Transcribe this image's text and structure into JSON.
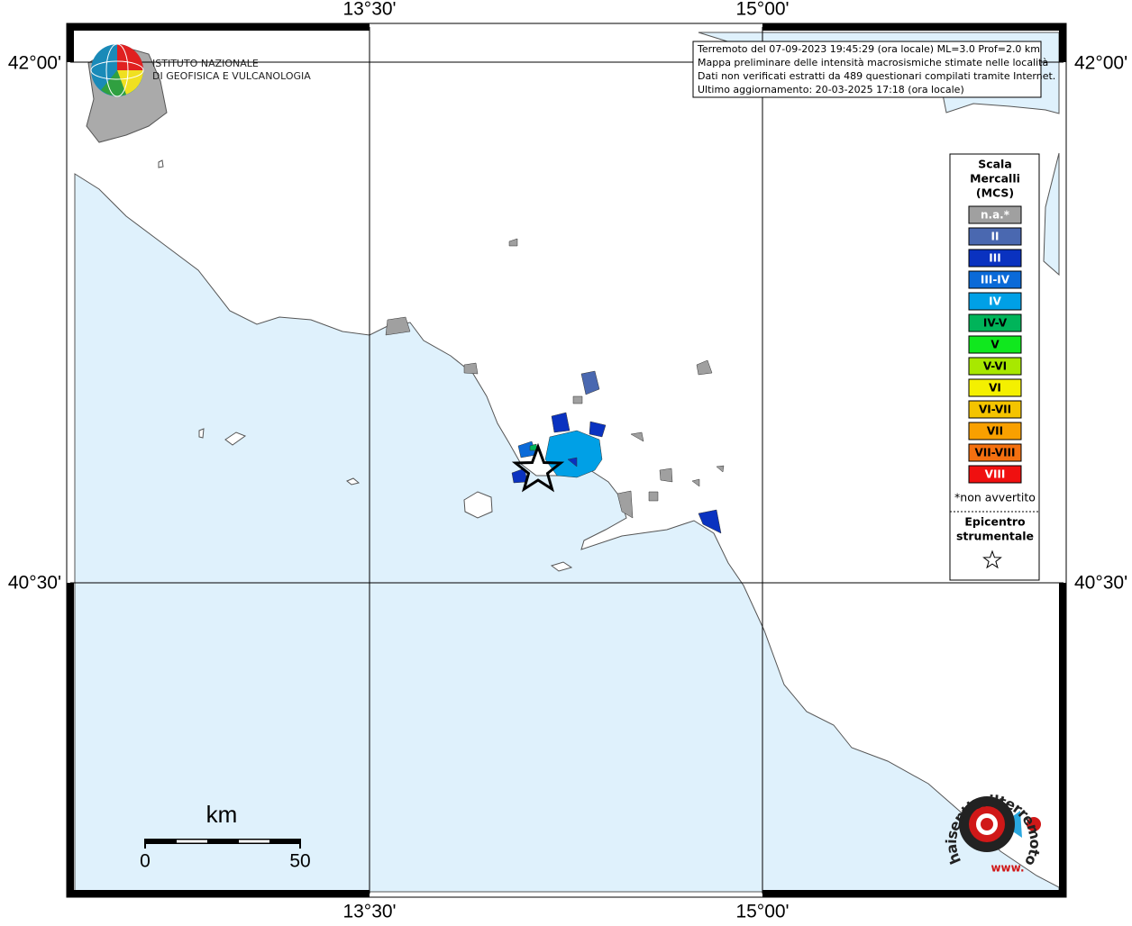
{
  "axes": {
    "lon_labels": [
      "13°30'",
      "15°00'"
    ],
    "lat_labels": [
      "42°00'",
      "40°30'"
    ]
  },
  "info": {
    "lines": [
      "Terremoto del 07-09-2023 19:45:29 (ora locale) ML=3.0 Prof=2.0 km",
      "Mappa preliminare delle intensità macrosismiche stimate nelle località",
      "Dati non verificati estratti da 489 questionari compilati tramite Internet.",
      "Ultimo aggiornamento: 20-03-2025 17:18 (ora locale)"
    ]
  },
  "logo": {
    "lines": [
      "ISTITUTO NAZIONALE",
      "DI GEOFISICA E VULCANOLOGIA"
    ]
  },
  "legend": {
    "title": [
      "Scala",
      "Mercalli",
      "(MCS)"
    ],
    "items": [
      {
        "label": "n.a.*",
        "color": "#a0a0a0",
        "text_color": "#ffffff"
      },
      {
        "label": "II",
        "color": "#4a68b0",
        "text_color": "#ffffff"
      },
      {
        "label": "III",
        "color": "#0a32c0",
        "text_color": "#ffffff"
      },
      {
        "label": "III-IV",
        "color": "#0a6ad8",
        "text_color": "#ffffff"
      },
      {
        "label": "IV",
        "color": "#00a0e6",
        "text_color": "#ffffff"
      },
      {
        "label": "IV-V",
        "color": "#00b45a",
        "text_color": "#000000"
      },
      {
        "label": "V",
        "color": "#10e81e",
        "text_color": "#000000"
      },
      {
        "label": "V-VI",
        "color": "#a8e800",
        "text_color": "#000000"
      },
      {
        "label": "VI",
        "color": "#f4f000",
        "text_color": "#000000"
      },
      {
        "label": "VI-VII",
        "color": "#f4c400",
        "text_color": "#000000"
      },
      {
        "label": "VII",
        "color": "#f8a000",
        "text_color": "#000000"
      },
      {
        "label": "VII-VIII",
        "color": "#f47010",
        "text_color": "#000000"
      },
      {
        "label": "VIII",
        "color": "#f01010",
        "text_color": "#ffffff"
      }
    ],
    "footnote": "*non avvertito",
    "epicenter": [
      "Epicentro",
      "strumentale"
    ]
  },
  "scale": {
    "unit": "km",
    "start": "0",
    "end": "50"
  },
  "badge": {
    "ring": "haisentitoilterremoto.it",
    "prefix": "www."
  }
}
